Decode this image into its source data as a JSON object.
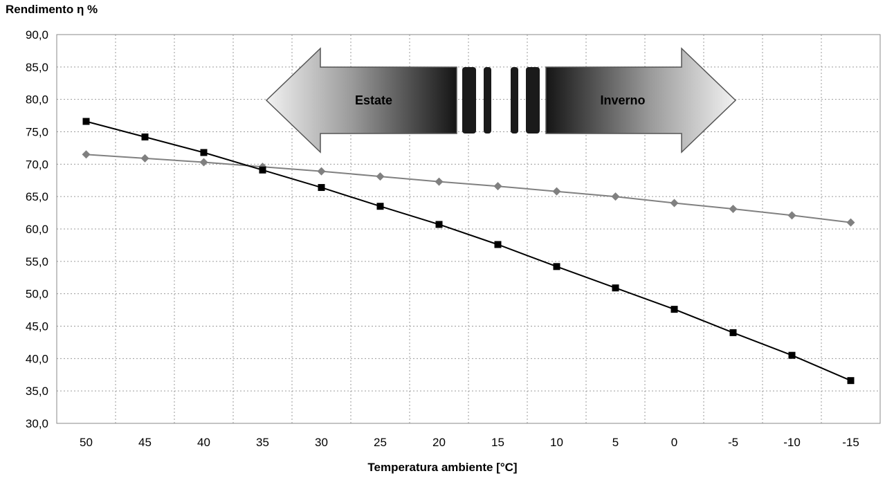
{
  "chart_data": {
    "type": "line",
    "ylabel": "Rendimento η %",
    "xlabel": "Temperatura ambiente [°C]",
    "x": [
      50,
      45,
      40,
      35,
      30,
      25,
      20,
      15,
      10,
      5,
      0,
      -5,
      -10,
      -15
    ],
    "x_tick_labels": [
      "50",
      "45",
      "40",
      "35",
      "30",
      "25",
      "20",
      "15",
      "10",
      "5",
      "0",
      "-5",
      "-10",
      "-15"
    ],
    "y_tick_labels": [
      "90,0",
      "85,0",
      "80,0",
      "75,0",
      "70,0",
      "65,0",
      "60,0",
      "55,0",
      "50,0",
      "45,0",
      "40,0",
      "35,0",
      "30,0"
    ],
    "ylim": [
      30,
      90
    ],
    "grid": true,
    "series": [
      {
        "marker": "diamond",
        "color": "#808080",
        "values": [
          71.5,
          70.9,
          70.3,
          69.6,
          68.9,
          68.1,
          67.3,
          66.6,
          65.8,
          65.0,
          64.0,
          63.1,
          62.1,
          61.0
        ]
      },
      {
        "marker": "square",
        "color": "#000000",
        "values": [
          76.6,
          74.2,
          71.8,
          69.1,
          66.4,
          63.5,
          60.7,
          57.6,
          54.2,
          50.9,
          47.6,
          44.0,
          40.5,
          36.6
        ]
      }
    ],
    "annotations": [
      {
        "text": "Estate",
        "kind": "arrow-left"
      },
      {
        "text": "Inverno",
        "kind": "arrow-right"
      }
    ]
  }
}
